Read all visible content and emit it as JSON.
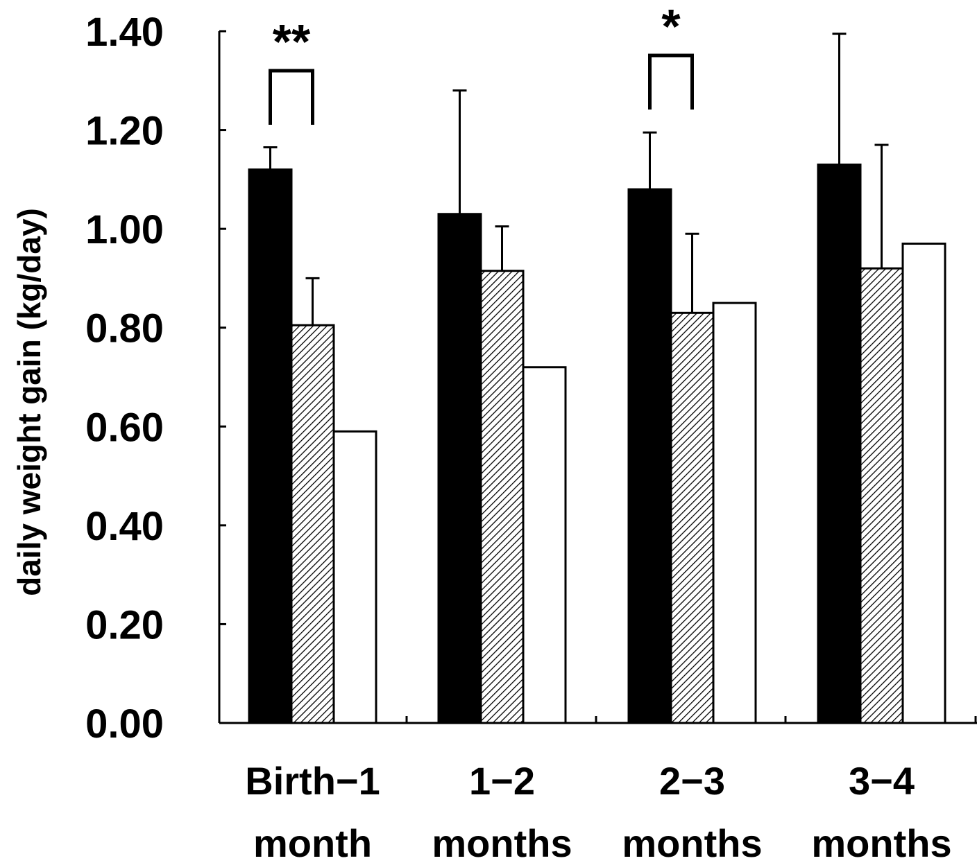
{
  "chart_data": {
    "type": "bar",
    "title": "",
    "xlabel": "",
    "ylabel": "daily weight gain (kg/day)",
    "ylim": [
      0,
      1.4
    ],
    "yticks": [
      "0.00",
      "0.20",
      "0.40",
      "0.60",
      "0.80",
      "1.00",
      "1.20",
      "1.40"
    ],
    "categories": [
      [
        "Birth−1",
        "month"
      ],
      [
        "1−2",
        "months"
      ],
      [
        "2−3",
        "months"
      ],
      [
        "3−4",
        "months"
      ]
    ],
    "series": [
      {
        "name": "black",
        "values": [
          1.12,
          1.03,
          1.08,
          1.13
        ],
        "error_upper": [
          0.045,
          0.25,
          0.115,
          0.265
        ]
      },
      {
        "name": "hatched",
        "values": [
          0.805,
          0.915,
          0.83,
          0.92
        ],
        "error_upper": [
          0.095,
          0.09,
          0.16,
          0.25
        ]
      },
      {
        "name": "white",
        "values": [
          0.59,
          0.72,
          0.85,
          0.97
        ],
        "error_upper": [
          0,
          0,
          0,
          0
        ]
      }
    ],
    "significance": [
      {
        "category_index": 0,
        "label": "**",
        "between": [
          "black",
          "hatched"
        ]
      },
      {
        "category_index": 2,
        "label": "*",
        "between": [
          "black",
          "hatched"
        ]
      }
    ],
    "grid": false,
    "legend": "none"
  }
}
